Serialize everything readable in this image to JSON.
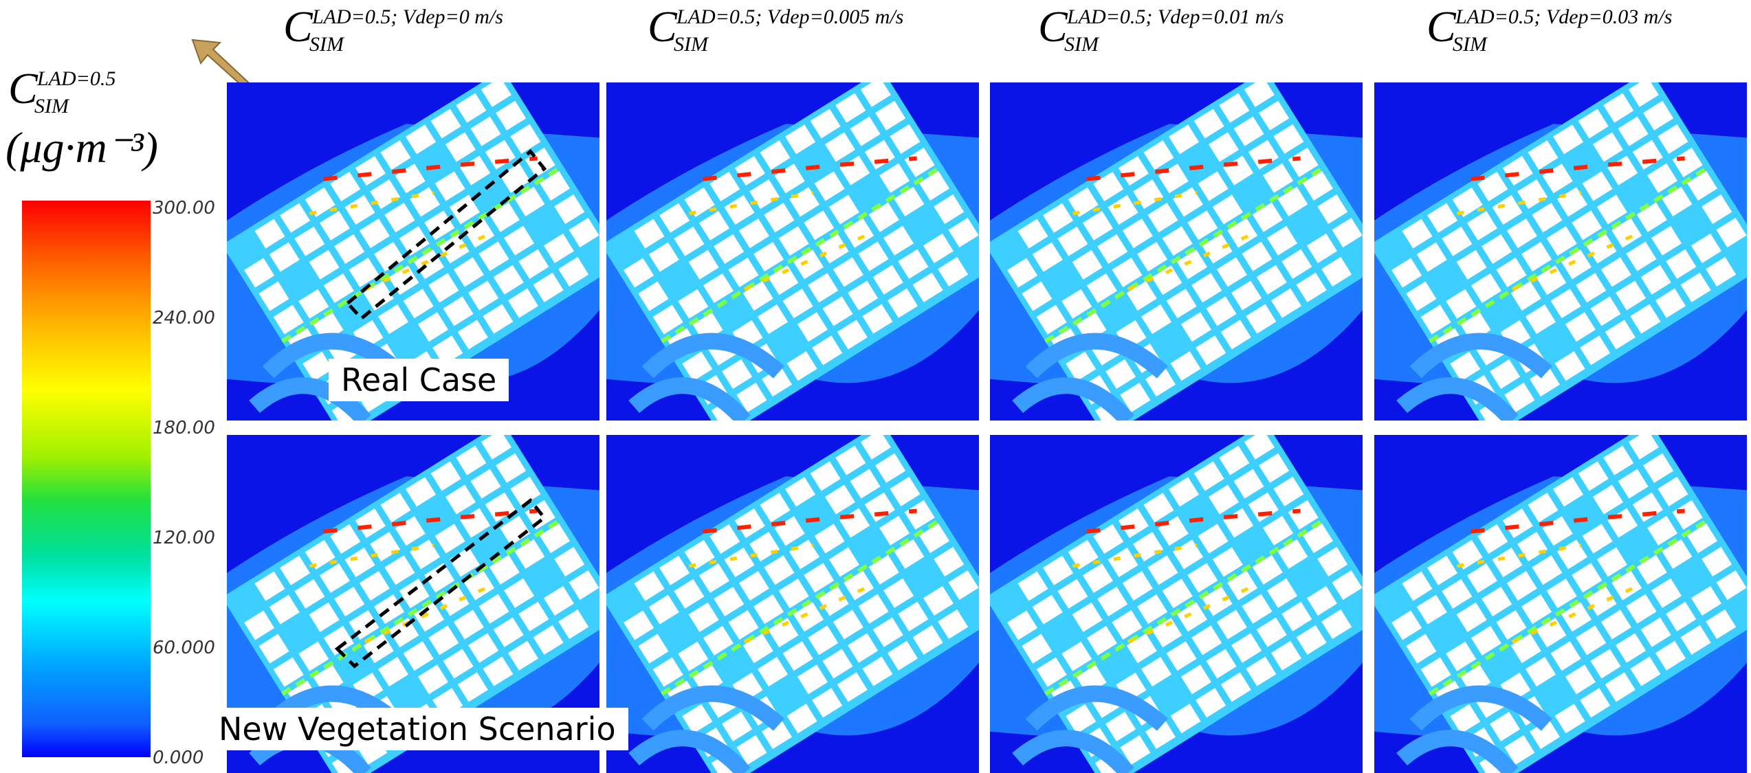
{
  "symbol": "C",
  "subscript": "SIM",
  "legend": {
    "superscript": "LAD=0.5",
    "unit": "(μg·m⁻³)",
    "ticks": [
      "300.00",
      "240.00",
      "180.00",
      "120.00",
      "60.000",
      "0.000"
    ]
  },
  "columns": [
    {
      "superscript": "LAD=0.5; Vdep=0 m/s"
    },
    {
      "superscript": "LAD=0.5; Vdep=0.005 m/s"
    },
    {
      "superscript": "LAD=0.5; Vdep=0.01 m/s"
    },
    {
      "superscript": "LAD=0.5; Vdep=0.03 m/s"
    }
  ],
  "rows": [
    {
      "label": "Real Case"
    },
    {
      "label": "New Vegetation Scenario"
    }
  ]
}
